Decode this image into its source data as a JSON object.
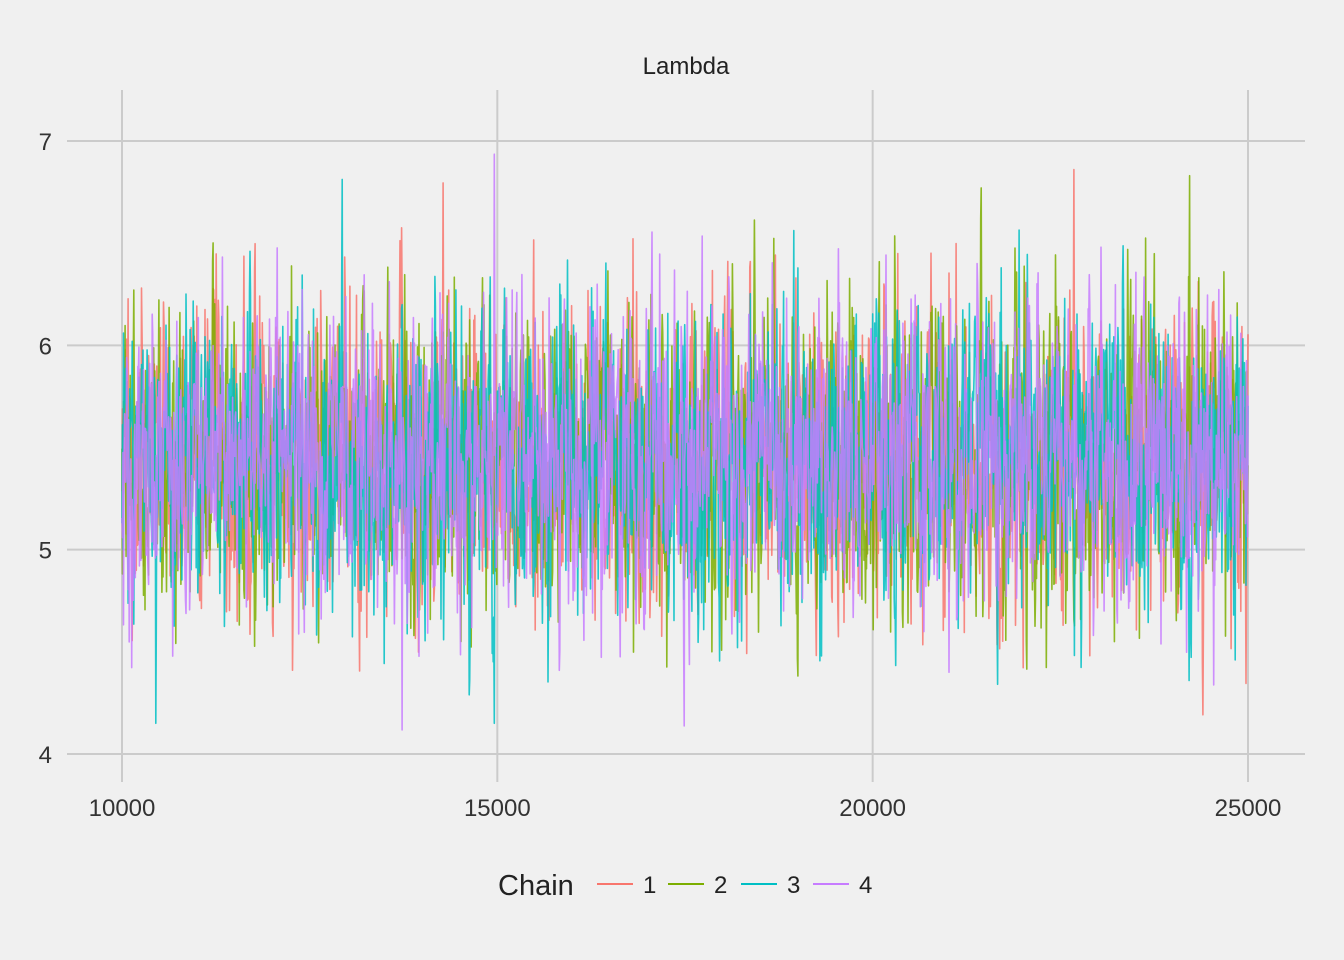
{
  "chart_data": {
    "type": "line",
    "title": "Lambda",
    "xlabel": "",
    "ylabel": "",
    "xlim": [
      10000,
      25000
    ],
    "ylim": [
      4,
      7
    ],
    "x_ticks": [
      10000,
      15000,
      20000,
      25000
    ],
    "y_ticks": [
      4,
      5,
      6,
      7
    ],
    "grid": true,
    "legend": {
      "title": "Chain",
      "position": "bottom",
      "entries": [
        "1",
        "2",
        "3",
        "4"
      ]
    },
    "series": [
      {
        "name": "1",
        "color": "#F8766D",
        "iterations": [
          10000,
          25000
        ],
        "mean": 5.45,
        "sd": 0.37,
        "min": 4.03,
        "max": 6.86
      },
      {
        "name": "2",
        "color": "#7CAE00",
        "iterations": [
          10000,
          25000
        ],
        "mean": 5.45,
        "sd": 0.37,
        "min": 4.06,
        "max": 6.83
      },
      {
        "name": "3",
        "color": "#00BFC4",
        "iterations": [
          10000,
          25000
        ],
        "mean": 5.45,
        "sd": 0.37,
        "min": 4.15,
        "max": 7.01
      },
      {
        "name": "4",
        "color": "#C77CFF",
        "iterations": [
          10000,
          25000
        ],
        "mean": 5.45,
        "sd": 0.37,
        "min": 4.02,
        "max": 7.1
      }
    ]
  }
}
